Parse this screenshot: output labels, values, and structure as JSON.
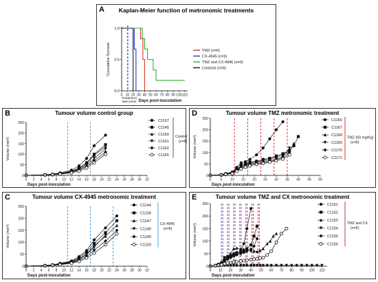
{
  "chart_data": [
    {
      "type": "line",
      "id": "A",
      "panel_label": "A",
      "title": "Kaplan-Meier function of metronomic treatments",
      "xlabel": "Days post-inoculation",
      "ylabel": "Cumulative Survival",
      "xlim": [
        0,
        115
      ],
      "ylim": [
        0,
        1.0
      ],
      "xticks": [
        0,
        10,
        20,
        30,
        40,
        50,
        60,
        70,
        80,
        90,
        100,
        110
      ],
      "yticks": [
        0.0,
        0.5,
        1.0
      ],
      "annotation": "Treatment start point",
      "start_lines": [
        10,
        11
      ],
      "legend_position": "right",
      "series": [
        {
          "name": "TMZ (n=6)",
          "color": "#e03030",
          "points": [
            [
              0,
              1
            ],
            [
              33,
              1
            ],
            [
              33,
              0.833
            ],
            [
              37,
              0.833
            ],
            [
              37,
              0.5
            ],
            [
              40,
              0.5
            ],
            [
              40,
              0
            ]
          ]
        },
        {
          "name": "CX-4945 (n=6)",
          "color": "#1e3cc8",
          "points": [
            [
              0,
              1
            ],
            [
              22,
              1
            ],
            [
              22,
              0.667
            ],
            [
              25,
              0.667
            ],
            [
              25,
              0
            ]
          ]
        },
        {
          "name": "TMZ and CX-4945 (n=6)",
          "color": "#2db02d",
          "points": [
            [
              0,
              1
            ],
            [
              36,
              1
            ],
            [
              36,
              0.833
            ],
            [
              40,
              0.833
            ],
            [
              40,
              0.667
            ],
            [
              45,
              0.667
            ],
            [
              45,
              0.5
            ],
            [
              55,
              0.5
            ],
            [
              55,
              0.333
            ],
            [
              60,
              0.333
            ],
            [
              60,
              0.167
            ],
            [
              110,
              0.167
            ]
          ]
        },
        {
          "name": "Controls (n=6)",
          "color": "#1a1a1a",
          "points": [
            [
              0,
              1
            ],
            [
              20,
              1
            ],
            [
              20,
              0
            ]
          ]
        }
      ]
    },
    {
      "type": "line",
      "id": "B",
      "panel_label": "B",
      "title": "Tumour volume control group",
      "xlabel": "Days post-inoculation",
      "ylabel": "Volume (mm³)",
      "xlim": [
        0,
        32
      ],
      "ylim": [
        0,
        250
      ],
      "xticks": [
        0,
        2,
        4,
        6,
        8,
        10,
        12,
        14,
        16,
        18,
        20,
        22,
        24,
        26,
        28,
        30,
        32
      ],
      "yticks": [
        0,
        50,
        100,
        150,
        200,
        250
      ],
      "vlines": [
        11,
        17
      ],
      "vline_color": "#999999",
      "group_label": "Controls",
      "group_n": "(n=6)",
      "bracket_color": "#555555",
      "series": [
        {
          "name": "C1157",
          "marker": "circle",
          "x": [
            0,
            5,
            7,
            9,
            12,
            14,
            16,
            18,
            21
          ],
          "y": [
            0,
            3,
            6,
            12,
            25,
            45,
            80,
            140,
            190
          ]
        },
        {
          "name": "C1145",
          "marker": "square",
          "x": [
            0,
            5,
            7,
            9,
            12,
            14,
            16,
            18,
            21
          ],
          "y": [
            0,
            3,
            5,
            10,
            20,
            35,
            60,
            100,
            145
          ]
        },
        {
          "name": "C1160",
          "marker": "triangle",
          "x": [
            0,
            5,
            7,
            9,
            12,
            14,
            16,
            18,
            21
          ],
          "y": [
            0,
            2,
            5,
            9,
            18,
            32,
            55,
            95,
            135
          ]
        },
        {
          "name": "C1161",
          "marker": "tridown",
          "x": [
            0,
            5,
            7,
            9,
            12,
            14,
            16,
            18,
            21
          ],
          "y": [
            0,
            2,
            4,
            8,
            16,
            28,
            48,
            80,
            125
          ]
        },
        {
          "name": "C1162",
          "marker": "diamond",
          "x": [
            0,
            5,
            7,
            9,
            12,
            14,
            16,
            18,
            21
          ],
          "y": [
            0,
            2,
            4,
            7,
            14,
            25,
            42,
            70,
            110
          ]
        },
        {
          "name": "C1165",
          "marker": "opencircle",
          "x": [
            0,
            5,
            7,
            9,
            12,
            14,
            16,
            18,
            21
          ],
          "y": [
            0,
            1,
            3,
            6,
            12,
            20,
            35,
            60,
            100
          ]
        }
      ]
    },
    {
      "type": "line",
      "id": "C",
      "panel_label": "C",
      "title": "Tumour volume CX-4945 metronomic treatment",
      "xlabel": "Days post-inoculation",
      "ylabel": "Volume (mm³)",
      "xlim": [
        0,
        32
      ],
      "ylim": [
        0,
        250
      ],
      "xticks": [
        0,
        2,
        4,
        6,
        8,
        10,
        12,
        14,
        16,
        18,
        20,
        22,
        24,
        26,
        28,
        30,
        32
      ],
      "yticks": [
        0,
        50,
        100,
        150,
        200,
        250
      ],
      "vlines": [
        11,
        17,
        23
      ],
      "vline_color": "#4a9fdc",
      "group_label": "CX-4945",
      "group_n": "(n=6)",
      "bracket_color": "#4a9fdc",
      "series": [
        {
          "name": "C1144",
          "marker": "circle",
          "x": [
            0,
            5,
            7,
            9,
            12,
            14,
            16,
            18,
            21,
            24
          ],
          "y": [
            0,
            3,
            6,
            12,
            22,
            40,
            65,
            110,
            160,
            210
          ]
        },
        {
          "name": "C1158",
          "marker": "square",
          "x": [
            0,
            5,
            7,
            9,
            12,
            14,
            16,
            18,
            21,
            24
          ],
          "y": [
            0,
            3,
            5,
            10,
            20,
            35,
            58,
            95,
            140,
            190
          ]
        },
        {
          "name": "C1147",
          "marker": "triangle",
          "x": [
            0,
            5,
            7,
            9,
            12,
            14,
            16,
            18,
            21,
            24
          ],
          "y": [
            0,
            2,
            5,
            9,
            18,
            30,
            50,
            85,
            125,
            170
          ]
        },
        {
          "name": "C1148",
          "marker": "tridown",
          "x": [
            0,
            5,
            7,
            9,
            12,
            14,
            16,
            18,
            21
          ],
          "y": [
            0,
            2,
            4,
            8,
            15,
            28,
            48,
            80,
            130
          ]
        },
        {
          "name": "C1149",
          "marker": "diamond",
          "x": [
            0,
            5,
            7,
            9,
            12,
            14,
            16,
            18,
            21,
            24
          ],
          "y": [
            0,
            2,
            4,
            7,
            14,
            24,
            40,
            68,
            105,
            150
          ]
        },
        {
          "name": "C1150",
          "marker": "opencircle",
          "x": [
            0,
            5,
            7,
            9,
            12,
            14,
            16,
            18,
            21,
            24
          ],
          "y": [
            0,
            1,
            3,
            6,
            12,
            20,
            34,
            55,
            90,
            135
          ]
        }
      ]
    },
    {
      "type": "line",
      "id": "D",
      "panel_label": "D",
      "title": "Tumour volume TMZ metronomic treatment",
      "xlabel": "Days post-inoculation",
      "ylabel": "Volume (mm³)",
      "xlim": [
        0,
        50
      ],
      "ylim": [
        0,
        250
      ],
      "xticks": [
        0,
        5,
        10,
        15,
        20,
        25,
        30,
        35,
        40,
        45,
        50
      ],
      "yticks": [
        0,
        50,
        100,
        150,
        200,
        250
      ],
      "vlines": [
        11,
        17,
        23,
        29,
        35
      ],
      "vline_color": "#e03030",
      "group_label": "TMZ (60 mg/Kg)",
      "group_n": "(n=6)",
      "bracket_color": "#e03030",
      "series": [
        {
          "name": "C1166",
          "marker": "circle",
          "x": [
            0,
            5,
            7,
            10,
            12,
            14,
            16,
            18,
            21,
            24,
            27,
            30,
            33
          ],
          "y": [
            0,
            3,
            8,
            15,
            35,
            55,
            60,
            70,
            90,
            120,
            160,
            200,
            235
          ]
        },
        {
          "name": "C1167",
          "marker": "square",
          "x": [
            0,
            5,
            7,
            10,
            12,
            14,
            16,
            18,
            21,
            24,
            27,
            30,
            33,
            36,
            38,
            40
          ],
          "y": [
            0,
            3,
            7,
            13,
            28,
            45,
            52,
            58,
            62,
            70,
            75,
            85,
            95,
            110,
            130,
            170
          ]
        },
        {
          "name": "C1168",
          "marker": "triangle",
          "x": [
            0,
            5,
            7,
            10,
            12,
            14,
            16,
            18,
            21,
            24,
            27,
            30,
            33,
            36,
            38
          ],
          "y": [
            0,
            2,
            6,
            12,
            25,
            40,
            48,
            55,
            60,
            65,
            72,
            80,
            90,
            105,
            140
          ]
        },
        {
          "name": "C1169",
          "marker": "tridown",
          "x": [
            0,
            5,
            7,
            10,
            12,
            14,
            16,
            18,
            21,
            24,
            27,
            30,
            33,
            36
          ],
          "y": [
            0,
            2,
            5,
            10,
            22,
            36,
            44,
            50,
            56,
            60,
            66,
            72,
            82,
            120
          ]
        },
        {
          "name": "C1170",
          "marker": "diamond",
          "x": [
            0,
            5,
            7,
            10,
            12,
            14,
            16,
            18,
            21,
            24,
            27,
            30,
            33,
            36
          ],
          "y": [
            0,
            2,
            5,
            9,
            20,
            32,
            40,
            46,
            52,
            56,
            62,
            68,
            78,
            100
          ]
        },
        {
          "name": "C1171",
          "marker": "opencircle",
          "x": [
            0,
            5,
            7,
            10,
            12,
            14,
            16,
            18,
            21,
            24,
            27,
            30,
            33,
            36
          ],
          "y": [
            0,
            1,
            4,
            8,
            18,
            28,
            36,
            42,
            48,
            52,
            58,
            64,
            72,
            90
          ]
        }
      ]
    },
    {
      "type": "line",
      "id": "E",
      "panel_label": "E",
      "title": "Tumour volume TMZ and CX metronomic treatment",
      "xlabel": "Days post-inoculation",
      "ylabel": "Volume (mm³)",
      "xlim": [
        0,
        115
      ],
      "ylim": [
        0,
        250
      ],
      "xticks": [
        0,
        10,
        20,
        30,
        40,
        50,
        60,
        70,
        80,
        90,
        100,
        110
      ],
      "yticks": [
        0,
        50,
        100,
        150,
        200,
        250
      ],
      "vlines": [
        11,
        17,
        23,
        29,
        35,
        41,
        47
      ],
      "vline_color": "#e03030",
      "vline_color2": "#4a6fdc",
      "group_label": "TMZ and CX",
      "group_n": "(n=6)",
      "bracket_color": "#c0306a",
      "series": [
        {
          "name": "C1151",
          "marker": "circle",
          "x": [
            0,
            5,
            8,
            11,
            14,
            17,
            20,
            23,
            26,
            30,
            33,
            36,
            40
          ],
          "y": [
            0,
            3,
            8,
            15,
            35,
            40,
            45,
            50,
            55,
            60,
            90,
            150,
            230
          ]
        },
        {
          "name": "C1152",
          "marker": "square",
          "x": [
            0,
            5,
            8,
            11,
            14,
            17,
            20,
            23,
            26,
            30,
            33,
            36,
            40,
            43,
            46
          ],
          "y": [
            0,
            3,
            7,
            12,
            25,
            32,
            38,
            44,
            50,
            56,
            62,
            70,
            85,
            120,
            160
          ]
        },
        {
          "name": "C1153",
          "marker": "triangle",
          "x": [
            0,
            5,
            8,
            11,
            14,
            17,
            20,
            23,
            26,
            30,
            33,
            36,
            40,
            43,
            46,
            49,
            52,
            56,
            59,
            62,
            65
          ],
          "y": [
            0,
            2,
            6,
            11,
            22,
            30,
            50,
            70,
            72,
            70,
            68,
            65,
            62,
            60,
            58,
            62,
            70,
            90,
            100,
            120,
            130
          ]
        },
        {
          "name": "C1154",
          "marker": "tridown",
          "x": [
            0,
            5,
            8,
            11,
            14,
            17,
            20,
            23,
            26,
            30,
            33,
            36,
            40,
            43,
            46,
            49,
            52,
            56,
            60,
            65,
            70,
            75,
            80,
            85,
            90,
            95,
            100,
            105,
            110
          ],
          "y": [
            0,
            1,
            2,
            3,
            3,
            3,
            3,
            3,
            3,
            3,
            3,
            3,
            3,
            3,
            3,
            3,
            3,
            3,
            3,
            3,
            3,
            3,
            3,
            3,
            3,
            3,
            3,
            3,
            3
          ]
        },
        {
          "name": "C1155",
          "marker": "diamond",
          "x": [
            0,
            5,
            8,
            11,
            14,
            17,
            20,
            23,
            26,
            30,
            33,
            36,
            40,
            43,
            46
          ],
          "y": [
            0,
            2,
            5,
            10,
            20,
            28,
            34,
            40,
            45,
            50,
            55,
            60,
            68,
            80,
            110
          ]
        },
        {
          "name": "C1156",
          "marker": "opencircle",
          "x": [
            0,
            5,
            8,
            11,
            14,
            17,
            20,
            23,
            26,
            30,
            33,
            36,
            40,
            43,
            46,
            49,
            52,
            56,
            60,
            65,
            70,
            75
          ],
          "y": [
            0,
            1,
            3,
            6,
            10,
            12,
            14,
            16,
            18,
            20,
            22,
            24,
            26,
            28,
            30,
            32,
            34,
            45,
            60,
            95,
            130,
            150
          ]
        }
      ]
    }
  ]
}
